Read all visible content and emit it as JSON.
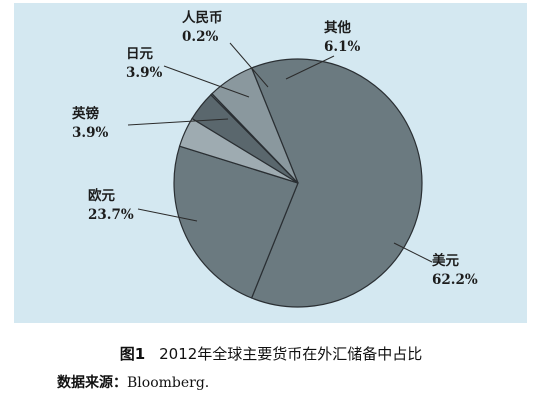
{
  "chart_data": {
    "type": "pie",
    "slices": [
      {
        "label": "美元",
        "value": 62.2,
        "value_text": "62.2%",
        "color": "#6b7a80"
      },
      {
        "label": "欧元",
        "value": 23.7,
        "value_text": "23.7%",
        "color": "#6b7a80"
      },
      {
        "label": "英镑",
        "value": 3.9,
        "value_text": "3.9%",
        "color": "#9eabb1"
      },
      {
        "label": "日元",
        "value": 3.9,
        "value_text": "3.9%",
        "color": "#5a676d"
      },
      {
        "label": "人民币",
        "value": 0.2,
        "value_text": "0.2%",
        "color": "#6b7a80"
      },
      {
        "label": "其他",
        "value": 6.1,
        "value_text": "6.1%",
        "color": "#8a989e"
      }
    ],
    "colors": {
      "background": "#d4e8f1",
      "edge": "#2a2f33",
      "text": "#1c1c1c"
    }
  },
  "caption": {
    "figure_number": "图1",
    "text": "2012年全球主要货币在外汇储备中占比"
  },
  "source": {
    "label": "数据来源：",
    "text": "Bloomberg."
  }
}
